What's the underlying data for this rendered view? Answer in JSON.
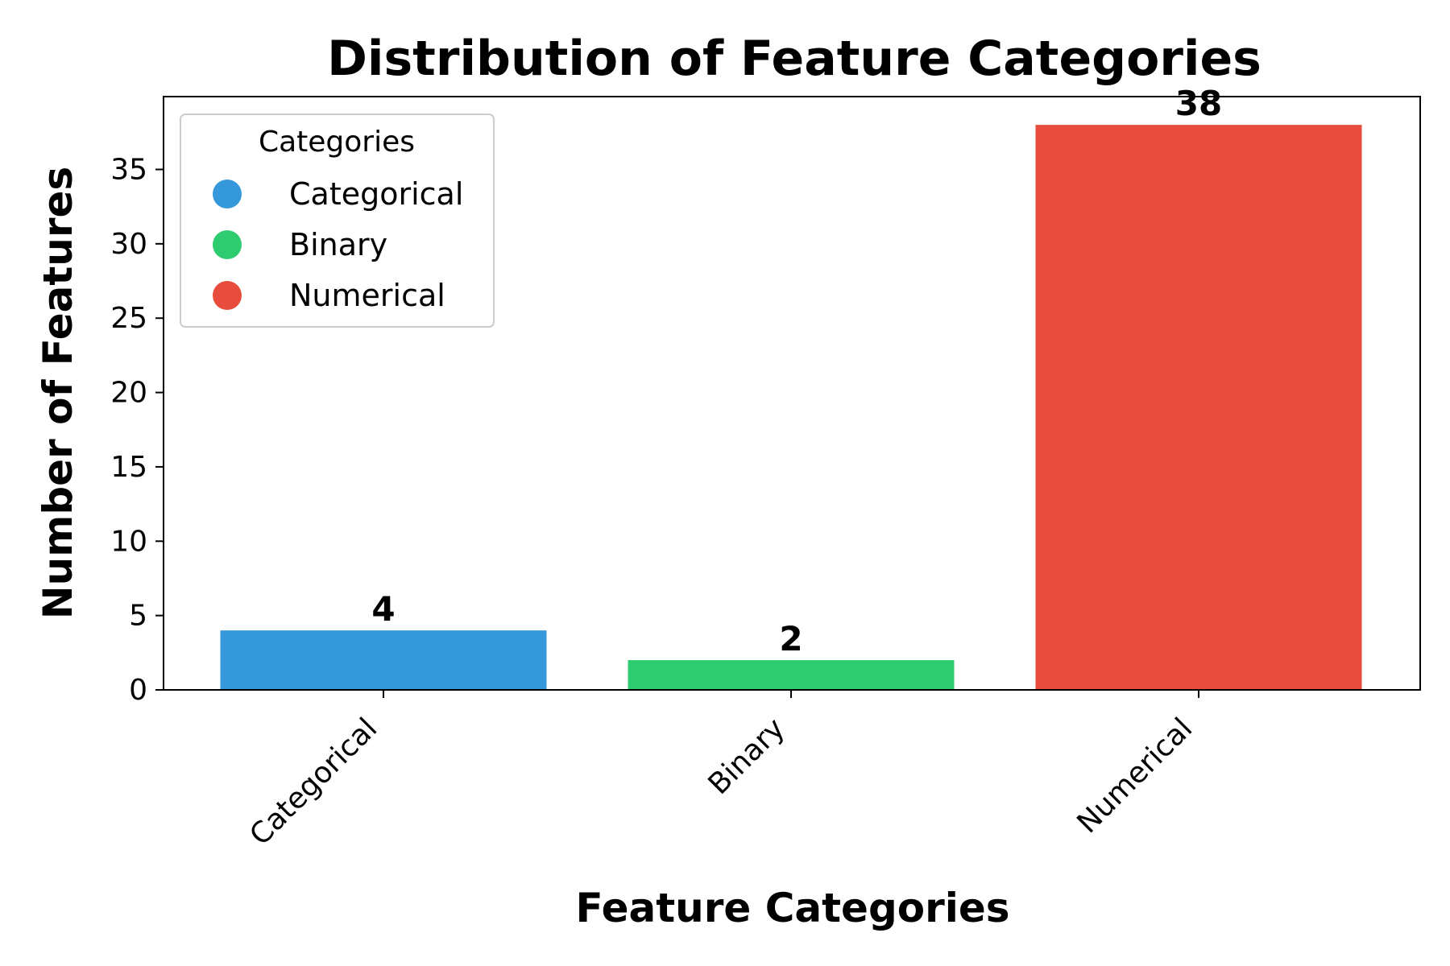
{
  "chart_data": {
    "type": "bar",
    "title": "Distribution of Feature Categories",
    "xlabel": "Feature Categories",
    "ylabel": "Number of Features",
    "categories": [
      "Categorical",
      "Binary",
      "Numerical"
    ],
    "values": [
      4,
      2,
      38
    ],
    "data_labels": [
      "4",
      "2",
      "38"
    ],
    "colors": [
      "#3498db",
      "#2ecc71",
      "#e74c3c"
    ],
    "ylim": [
      0,
      39.9
    ],
    "yticks": [
      0,
      5,
      10,
      15,
      20,
      25,
      30,
      35
    ],
    "ytick_labels": [
      "0",
      "5",
      "10",
      "15",
      "20",
      "25",
      "30",
      "35"
    ],
    "grid": false,
    "legend": {
      "title": "Categories",
      "placement": "top-left",
      "entries": [
        "Categorical",
        "Binary",
        "Numerical"
      ]
    }
  }
}
